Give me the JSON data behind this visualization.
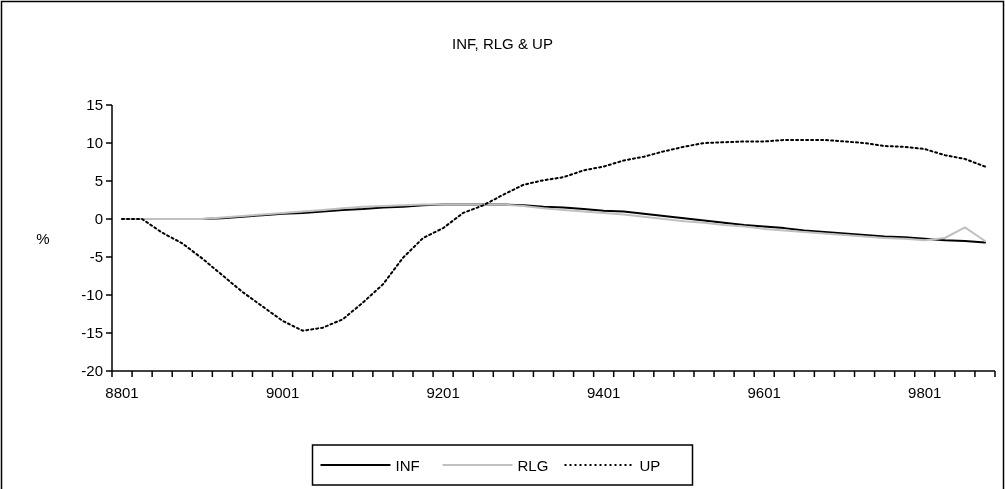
{
  "chart_data": {
    "type": "line",
    "title": "INF, RLG & UP",
    "ylabel": "%",
    "categories": [
      "8801",
      null,
      null,
      null,
      null,
      null,
      null,
      null,
      "9001",
      null,
      null,
      null,
      null,
      null,
      null,
      null,
      "9201",
      null,
      null,
      null,
      null,
      null,
      null,
      null,
      "9401",
      null,
      null,
      null,
      null,
      null,
      null,
      null,
      "9601",
      null,
      null,
      null,
      null,
      null,
      null,
      null,
      "9801",
      null,
      null,
      null
    ],
    "series": [
      {
        "name": "INF",
        "color": "#000000",
        "line_style": "solid",
        "values": [
          0,
          0,
          0,
          0,
          0,
          0.1,
          0.3,
          0.5,
          0.7,
          0.8,
          1.0,
          1.2,
          1.3,
          1.5,
          1.6,
          1.8,
          1.9,
          1.9,
          1.9,
          1.9,
          1.8,
          1.6,
          1.5,
          1.3,
          1.1,
          1.0,
          0.7,
          0.4,
          0.1,
          -0.2,
          -0.5,
          -0.8,
          -1.0,
          -1.2,
          -1.5,
          -1.7,
          -1.9,
          -2.1,
          -2.3,
          -2.4,
          -2.6,
          -2.8,
          -2.9,
          -3.1
        ]
      },
      {
        "name": "RLG",
        "color": "#c0c0c0",
        "line_style": "solid",
        "values": [
          0,
          0,
          0,
          0,
          0,
          0.2,
          0.4,
          0.6,
          0.8,
          1.0,
          1.2,
          1.4,
          1.6,
          1.7,
          1.8,
          1.9,
          1.9,
          1.9,
          1.9,
          1.9,
          1.7,
          1.4,
          1.2,
          1.0,
          0.8,
          0.6,
          0.3,
          0.0,
          -0.3,
          -0.5,
          -0.8,
          -1.0,
          -1.3,
          -1.5,
          -1.7,
          -1.9,
          -2.1,
          -2.3,
          -2.5,
          -2.6,
          -2.8,
          -2.5,
          -1.1,
          -2.9
        ]
      },
      {
        "name": "UP",
        "color": "#000000",
        "line_style": "dotted",
        "values": [
          0,
          0,
          -1.8,
          -3.2,
          -5.2,
          -7.4,
          -9.6,
          -11.5,
          -13.4,
          -14.7,
          -14.3,
          -13.2,
          -11.0,
          -8.6,
          -5.1,
          -2.5,
          -1.2,
          0.8,
          1.8,
          3.2,
          4.5,
          5.1,
          5.5,
          6.4,
          6.9,
          7.7,
          8.2,
          8.9,
          9.5,
          10.0,
          10.1,
          10.2,
          10.2,
          10.4,
          10.4,
          10.4,
          10.2,
          10.0,
          9.6,
          9.5,
          9.2,
          8.4,
          7.9,
          6.9
        ]
      }
    ],
    "ylim": [
      -20,
      15
    ],
    "yticks": [
      -20,
      -15,
      -10,
      -5,
      0,
      5,
      10,
      15
    ],
    "grid": false,
    "legend": "bottom",
    "marker": "none"
  }
}
